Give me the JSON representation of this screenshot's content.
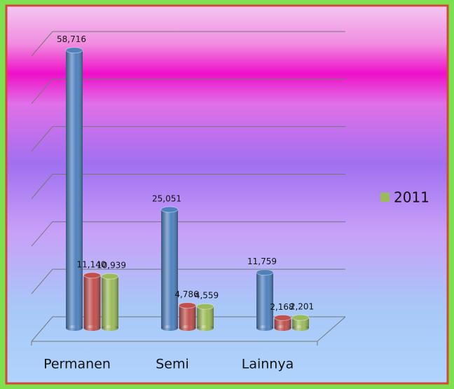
{
  "chart_data": {
    "type": "bar3d",
    "categories": [
      "Permanen",
      "Semi",
      "Lainnya"
    ],
    "series": [
      {
        "color": "#4f81bd",
        "values": [
          58716,
          25051,
          11759
        ],
        "value_labels": [
          "58,716",
          "25,051",
          "11,759"
        ]
      },
      {
        "color": "#c0504d",
        "values": [
          11140,
          4786,
          2168
        ],
        "value_labels": [
          "11,140",
          "4,786",
          "2,168"
        ]
      },
      {
        "name": "2011",
        "color": "#9bbb59",
        "values": [
          10939,
          4559,
          2201
        ],
        "value_labels": [
          "10,939",
          "4,559",
          "2,201"
        ]
      }
    ],
    "ylim": [
      0,
      60000
    ],
    "yticks": [
      0,
      10000,
      20000,
      30000,
      40000,
      50000,
      60000
    ],
    "grid": true,
    "legend": "right"
  }
}
